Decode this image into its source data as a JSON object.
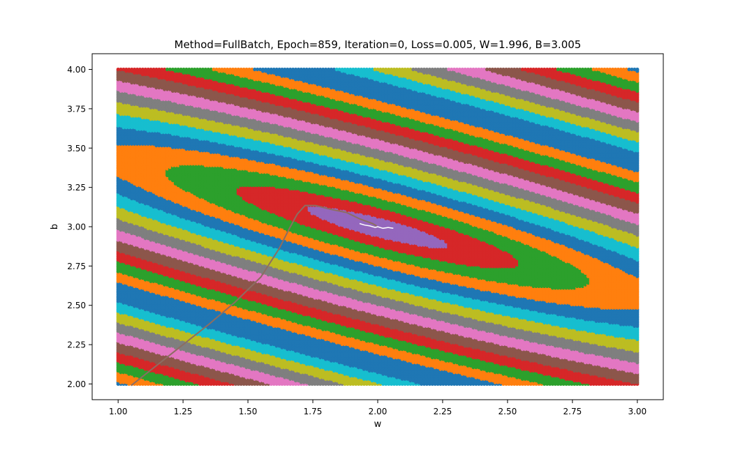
{
  "chart_data": {
    "type": "scatter",
    "title": "Method=FullBatch, Epoch=859, Iteration=0, Loss=0.005, W=1.996, B=3.005",
    "xlabel": "w",
    "ylabel": "b",
    "xlim": [
      0.9,
      3.1
    ],
    "ylim": [
      1.9,
      4.1
    ],
    "x_ticks": [
      "1.00",
      "1.25",
      "1.50",
      "1.75",
      "2.00",
      "2.25",
      "2.50",
      "2.75",
      "3.00"
    ],
    "y_ticks": [
      "2.00",
      "2.25",
      "2.50",
      "2.75",
      "3.00",
      "3.25",
      "3.50",
      "3.75",
      "4.00"
    ],
    "grid": false,
    "legend": "none",
    "loss_surface": {
      "description_of_fill": "dense grid of points over the loss surface, colored by loss band",
      "w_range": [
        1.0,
        3.0
      ],
      "b_range": [
        2.0,
        4.0
      ],
      "minimum": {
        "w": 2.0,
        "b": 3.0
      },
      "band_colors": [
        "#9467bd",
        "#d62728",
        "#2ca02c",
        "#ff7f0e",
        "#1f77b4",
        "#17becf",
        "#bcbd22",
        "#7f7f7f",
        "#e377c2",
        "#8c564b",
        "#d62728",
        "#2ca02c",
        "#ff7f0e",
        "#1f77b4"
      ]
    },
    "series": [
      {
        "color": "#8c6d62",
        "points": [
          [
            1.05,
            1.99
          ],
          [
            1.15,
            2.12
          ],
          [
            1.25,
            2.25
          ],
          [
            1.35,
            2.38
          ],
          [
            1.45,
            2.52
          ],
          [
            1.55,
            2.68
          ],
          [
            1.62,
            2.86
          ],
          [
            1.66,
            2.99
          ],
          [
            1.69,
            3.08
          ],
          [
            1.72,
            3.135
          ],
          [
            1.76,
            3.135
          ],
          [
            1.82,
            3.11
          ],
          [
            1.88,
            3.09
          ],
          [
            1.93,
            3.05
          ],
          [
            1.98,
            3.02
          ],
          [
            1.996,
            3.005
          ]
        ]
      },
      {
        "color": "#ffffff",
        "points": [
          [
            1.93,
            3.02
          ],
          [
            1.95,
            3.01
          ],
          [
            1.97,
            3.005
          ],
          [
            1.99,
            2.995
          ],
          [
            2.0,
            3.0
          ],
          [
            2.02,
            2.99
          ],
          [
            2.04,
            2.995
          ],
          [
            2.06,
            2.99
          ]
        ]
      }
    ]
  }
}
